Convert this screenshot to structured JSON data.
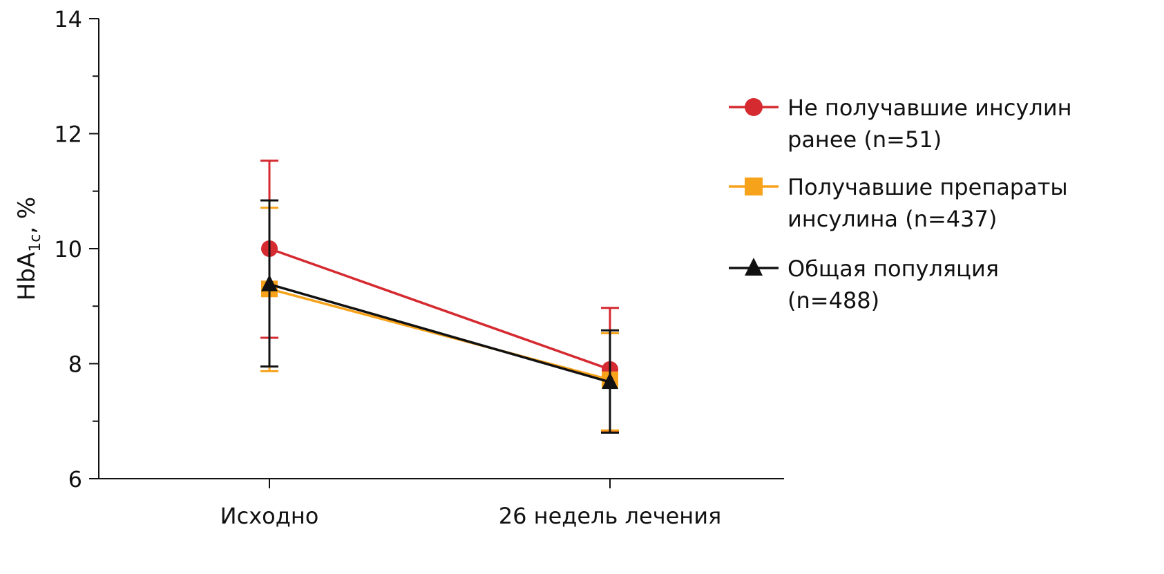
{
  "chart_data": {
    "type": "line",
    "title": "",
    "xlabel": "",
    "ylabel": {
      "main": "HbA",
      "sub": "1c",
      "suffix": ", %"
    },
    "ylim": [
      6,
      14
    ],
    "yticks": [
      "6",
      "8",
      "10",
      "12",
      "14"
    ],
    "categories": [
      "Исходно",
      "26 недель лечения"
    ],
    "legend_position": "right",
    "series": [
      {
        "name_line1": "Не получавшие инсулин",
        "name_line2": "ранее (n=51)",
        "color": "#d42a30",
        "marker": "circle",
        "values": [
          10.0,
          7.9
        ],
        "upper": [
          11.53,
          8.97
        ],
        "lower": [
          8.45,
          6.83
        ]
      },
      {
        "name_line1": "Получавшие препараты",
        "name_line2": "инсулина (n=437)",
        "color": "#f7a21b",
        "marker": "square",
        "values": [
          9.3,
          7.72
        ],
        "upper": [
          10.71,
          8.53
        ],
        "lower": [
          7.87,
          6.84
        ]
      },
      {
        "name_line1": "Общая популяция",
        "name_line2": "(n=488)",
        "color": "#111111",
        "marker": "triangle",
        "values": [
          9.38,
          7.68
        ],
        "upper": [
          10.84,
          8.58
        ],
        "lower": [
          7.95,
          6.8
        ]
      }
    ]
  }
}
